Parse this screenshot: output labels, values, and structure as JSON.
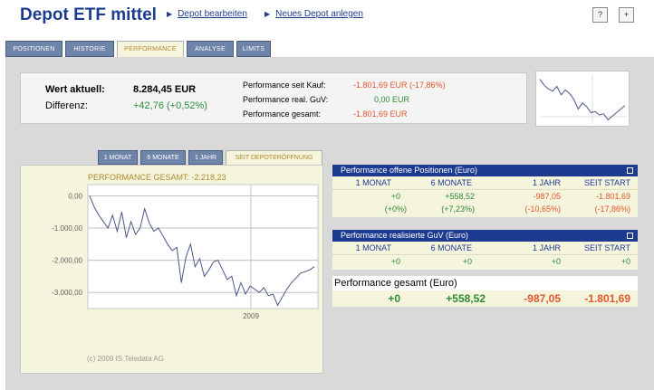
{
  "header": {
    "title": "Depot ETF mittel",
    "link_edit": "Depot bearbeiten",
    "link_new": "Neues Depot anlegen",
    "icon_help": "?",
    "icon_export": "+"
  },
  "tabs": [
    {
      "label": "POSITIONEN"
    },
    {
      "label": "HISTORIE"
    },
    {
      "label": "PERFORMANCE"
    },
    {
      "label": "ANALYSE"
    },
    {
      "label": "LIMITS"
    }
  ],
  "summary": {
    "wert_label": "Wert aktuell:",
    "wert_value": "8.284,45 EUR",
    "diff_label": "Differenz:",
    "diff_value": "+42,76 (+0,52%)",
    "perf_kauf_label": "Performance seit Kauf:",
    "perf_kauf_value": "-1.801,69 EUR (-17,86%)",
    "perf_real_label": "Performance real. GuV:",
    "perf_real_value": "0,00 EUR",
    "perf_ges_label": "Performance gesamt:",
    "perf_ges_value": "-1.801,69 EUR"
  },
  "chart_tabs": [
    {
      "label": "1 MONAT"
    },
    {
      "label": "6 MONATE"
    },
    {
      "label": "1 JAHR"
    },
    {
      "label": "SEIT DEPOTERÖFFNUNG"
    }
  ],
  "chart_data": {
    "type": "line",
    "title": "PERFORMANCE GESAMT: -2.218,23",
    "ytick_labels": [
      "0,00",
      "-1.000,00",
      "-2.000,00",
      "-3.000,00"
    ],
    "yticks": [
      0,
      -1000,
      -2000,
      -3000
    ],
    "ylim": [
      -3500,
      350
    ],
    "xtick_labels": [
      "2009"
    ],
    "series": [
      {
        "values": [
          0,
          -350,
          -600,
          -800,
          -1000,
          -600,
          -1100,
          -500,
          -1300,
          -800,
          -1200,
          -1000,
          -400,
          -850,
          -1100,
          -1000,
          -1250,
          -1500,
          -1700,
          -1600,
          -2700,
          -1900,
          -1500,
          -2200,
          -1950,
          -2500,
          -2300,
          -2050,
          -2000,
          -2300,
          -2600,
          -2500,
          -3100,
          -2700,
          -3050,
          -2800,
          -2900,
          -3000,
          -2850,
          -3100,
          -3050,
          -3400,
          -3150,
          -2900,
          -2700,
          -2550,
          -2400,
          -2350,
          -2300,
          -2200
        ]
      }
    ],
    "copyright": "(c) 2009 IS.Teledata AG"
  },
  "thumb_data": {
    "values": [
      0,
      -500,
      -800,
      -1000,
      -600,
      -1300,
      -900,
      -1200,
      -1700,
      -2500,
      -2000,
      -2300,
      -2800,
      -2700,
      -3000,
      -2900,
      -3400,
      -3100,
      -2800,
      -2500,
      -2200
    ]
  },
  "table_offen": {
    "title": "Performance offene Positionen (Euro)",
    "headers": [
      "1 MONAT",
      "6 MONATE",
      "1 JAHR",
      "SEIT START"
    ],
    "abs": [
      "+0",
      "+558,52",
      "-987,05",
      "-1.801,69"
    ],
    "pct": [
      "(+0%)",
      "(+7,23%)",
      "(-10,65%)",
      "(-17,86%)"
    ]
  },
  "table_real": {
    "title": "Performance realisierte GuV (Euro)",
    "headers": [
      "1 MONAT",
      "6 MONATE",
      "1 JAHR",
      "SEIT START"
    ],
    "abs": [
      "+0",
      "+0",
      "+0",
      "+0"
    ]
  },
  "table_gesamt": {
    "title": "Performance gesamt (Euro)",
    "abs": [
      "+0",
      "+558,52",
      "-987,05",
      "-1.801,69"
    ]
  },
  "colors": {
    "brand": "#1c3d8f",
    "positive": "#2d8a3a",
    "negative": "#e2562b",
    "tab_active_text": "#b08a2e"
  }
}
